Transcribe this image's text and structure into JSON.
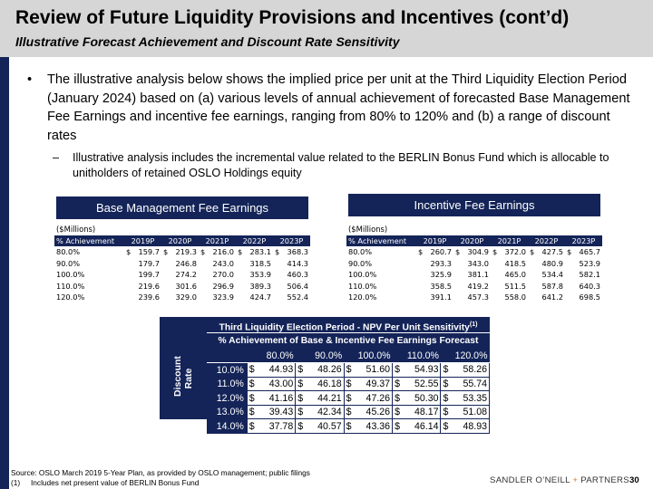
{
  "header": {
    "title": "Review of Future Liquidity Provisions and Incentives (cont’d)",
    "subtitle": "Illustrative Forecast Achievement and Discount Rate Sensitivity"
  },
  "body": {
    "bullet_symbol": "•",
    "bullet": "The illustrative analysis below shows the implied price per unit at the Third Liquidity Election Period (January 2024) based on (a) various levels of annual achievement of forecasted Base Management Fee Earnings and incentive fee earnings, ranging from 80% to 120% and (b) a range of discount rates",
    "sub_symbol": "–",
    "sub_bullet": "Illustrative analysis includes the incremental value related to the BERLIN Bonus Fund which is allocable to unitholders of retained OSLO Holdings equity"
  },
  "base_table": {
    "title": "Base Management Fee Earnings",
    "unit": "($Millions)",
    "headers": [
      "% Achievement",
      "2019P",
      "2020P",
      "2021P",
      "2022P",
      "2023P"
    ],
    "rows": [
      [
        "80.0%",
        "159.7",
        "219.3",
        "216.0",
        "283.1",
        "368.3"
      ],
      [
        "90.0%",
        "179.7",
        "246.8",
        "243.0",
        "318.5",
        "414.3"
      ],
      [
        "100.0%",
        "199.7",
        "274.2",
        "270.0",
        "353.9",
        "460.3"
      ],
      [
        "110.0%",
        "219.6",
        "301.6",
        "296.9",
        "389.3",
        "506.4"
      ],
      [
        "120.0%",
        "239.6",
        "329.0",
        "323.9",
        "424.7",
        "552.4"
      ]
    ]
  },
  "incentive_table": {
    "title": "Incentive Fee Earnings",
    "unit": "($Millions)",
    "headers": [
      "% Achievement",
      "2019P",
      "2020P",
      "2021P",
      "2022P",
      "2023P"
    ],
    "rows": [
      [
        "80.0%",
        "260.7",
        "304.9",
        "372.0",
        "427.5",
        "465.7"
      ],
      [
        "90.0%",
        "293.3",
        "343.0",
        "418.5",
        "480.9",
        "523.9"
      ],
      [
        "100.0%",
        "325.9",
        "381.1",
        "465.0",
        "534.4",
        "582.1"
      ],
      [
        "110.0%",
        "358.5",
        "419.2",
        "511.5",
        "587.8",
        "640.3"
      ],
      [
        "120.0%",
        "391.1",
        "457.3",
        "558.0",
        "641.2",
        "698.5"
      ]
    ]
  },
  "currency": "$",
  "npv": {
    "title": "Third Liquidity Election Period - NPV Per Unit Sensitivity",
    "title_note": "(1)",
    "subtitle": "% Achievement of Base & Incentive Fee Earnings Forecast",
    "side_label_1": "Discount",
    "side_label_2": "Rate",
    "columns": [
      "80.0%",
      "90.0%",
      "100.0%",
      "110.0%",
      "120.0%"
    ],
    "rows": [
      {
        "rate": "10.0%",
        "values": [
          "44.93",
          "48.26",
          "51.60",
          "54.93",
          "58.26"
        ]
      },
      {
        "rate": "11.0%",
        "values": [
          "43.00",
          "46.18",
          "49.37",
          "52.55",
          "55.74"
        ]
      },
      {
        "rate": "12.0%",
        "values": [
          "41.16",
          "44.21",
          "47.26",
          "50.30",
          "53.35"
        ]
      },
      {
        "rate": "13.0%",
        "values": [
          "39.43",
          "42.34",
          "45.26",
          "48.17",
          "51.08"
        ]
      },
      {
        "rate": "14.0%",
        "values": [
          "37.78",
          "40.57",
          "43.36",
          "46.14",
          "48.93"
        ]
      }
    ]
  },
  "footer": {
    "source": "Source: OSLO March 2019 5-Year Plan, as provided by OSLO management; public filings",
    "note_num": "(1)",
    "note": "Includes net present value of BERLIN Bonus Fund",
    "brand_left": "SANDLER O’NEILL",
    "brand_plus": "+",
    "brand_right": "PARTNERS",
    "page": "30"
  }
}
